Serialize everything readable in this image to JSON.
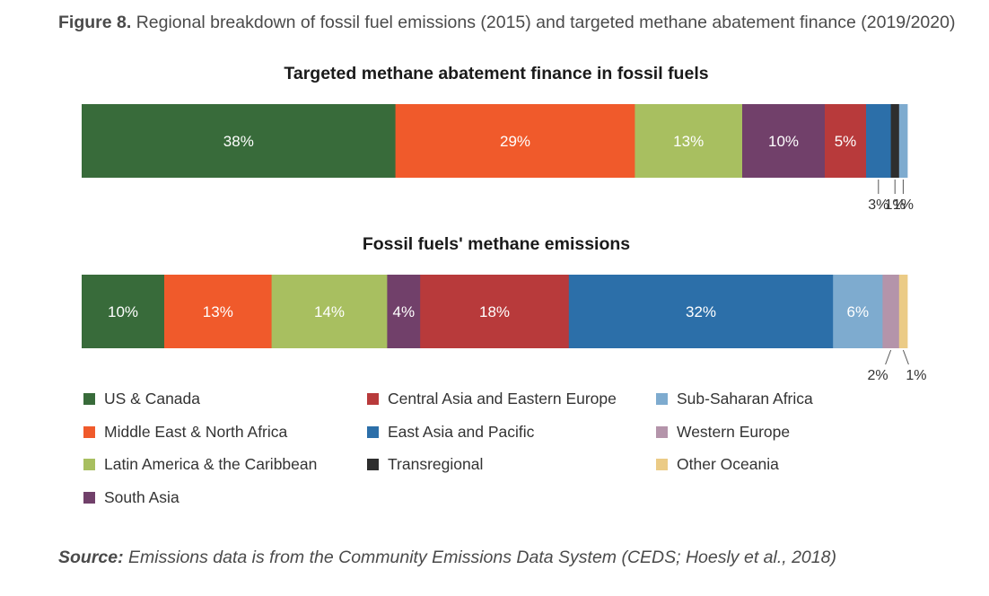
{
  "figure": {
    "label": "Figure 8.",
    "caption": "Regional breakdown of fossil fuel emissions (2015) and targeted methane abatement finance (2019/2020)"
  },
  "legend": [
    {
      "name": "US & Canada",
      "color": "#386b3a"
    },
    {
      "name": "Middle East & North Africa",
      "color": "#f05a2b"
    },
    {
      "name": "Latin America & the Caribbean",
      "color": "#a8bf60"
    },
    {
      "name": "South Asia",
      "color": "#71406a"
    },
    {
      "name": "Central Asia and Eastern Europe",
      "color": "#b83a3b"
    },
    {
      "name": "East Asia and Pacific",
      "color": "#2c6fa9"
    },
    {
      "name": "Transregional",
      "color": "#2e2e2e"
    },
    {
      "name": "Sub-Saharan Africa",
      "color": "#7eabcf"
    },
    {
      "name": "Western Europe",
      "color": "#b494aa"
    },
    {
      "name": "Other Oceania",
      "color": "#ebcb86"
    }
  ],
  "chart_data": [
    {
      "type": "bar",
      "orientation": "horizontal-stacked",
      "title": "Targeted methane abatement finance in fossil fuels",
      "unit": "%",
      "segments": [
        {
          "region": "US & Canada",
          "value": 38,
          "label": "38%"
        },
        {
          "region": "Middle East & North Africa",
          "value": 29,
          "label": "29%"
        },
        {
          "region": "Latin America & the Caribbean",
          "value": 13,
          "label": "13%"
        },
        {
          "region": "South Asia",
          "value": 10,
          "label": "10%"
        },
        {
          "region": "Central Asia and Eastern Europe",
          "value": 5,
          "label": "5%"
        },
        {
          "region": "East Asia and Pacific",
          "value": 3,
          "label": "3%"
        },
        {
          "region": "Transregional",
          "value": 1,
          "label": "1%"
        },
        {
          "region": "Sub-Saharan Africa",
          "value": 1,
          "label": "1%"
        }
      ]
    },
    {
      "type": "bar",
      "orientation": "horizontal-stacked",
      "title": "Fossil fuels' methane emissions",
      "unit": "%",
      "segments": [
        {
          "region": "US & Canada",
          "value": 10,
          "label": "10%"
        },
        {
          "region": "Middle East & North Africa",
          "value": 13,
          "label": "13%"
        },
        {
          "region": "Latin America & the Caribbean",
          "value": 14,
          "label": "14%"
        },
        {
          "region": "South Asia",
          "value": 4,
          "label": "4%"
        },
        {
          "region": "Central Asia and Eastern Europe",
          "value": 18,
          "label": "18%"
        },
        {
          "region": "East Asia and Pacific",
          "value": 32,
          "label": "32%"
        },
        {
          "region": "Sub-Saharan Africa",
          "value": 6,
          "label": "6%"
        },
        {
          "region": "Western Europe",
          "value": 2,
          "label": "2%"
        },
        {
          "region": "Other Oceania",
          "value": 1,
          "label": "1%"
        }
      ]
    }
  ],
  "source": {
    "label": "Source:",
    "text": "Emissions data is from the Community Emissions Data System (CEDS; Hoesly et al., 2018)"
  }
}
